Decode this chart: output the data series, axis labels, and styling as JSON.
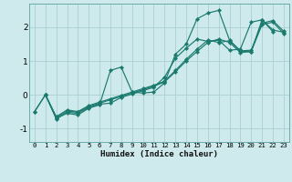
{
  "xlabel": "Humidex (Indice chaleur)",
  "bg_color": "#ceeaec",
  "grid_color": "#aacfd2",
  "line_color": "#1a7a6e",
  "xlim": [
    -0.5,
    23.5
  ],
  "ylim": [
    -1.4,
    2.7
  ],
  "yticks": [
    -1,
    0,
    1,
    2
  ],
  "xticks": [
    0,
    1,
    2,
    3,
    4,
    5,
    6,
    7,
    8,
    9,
    10,
    11,
    12,
    13,
    14,
    15,
    16,
    17,
    18,
    19,
    20,
    21,
    22,
    23
  ],
  "series": [
    {
      "x": [
        0,
        1,
        2,
        3,
        4,
        5,
        6,
        7,
        8,
        9,
        10,
        11,
        12,
        13,
        14,
        15,
        16,
        17,
        18,
        19,
        20,
        21,
        22
      ],
      "y": [
        -0.5,
        0.0,
        -0.7,
        -0.55,
        -0.6,
        -0.4,
        -0.3,
        0.72,
        0.82,
        0.08,
        0.05,
        0.08,
        0.35,
        1.2,
        1.5,
        2.25,
        2.42,
        2.5,
        1.62,
        1.3,
        1.27,
        2.22,
        1.87
      ]
    },
    {
      "x": [
        1,
        2,
        3,
        4,
        5,
        6,
        7,
        8,
        9,
        10,
        11,
        12,
        13,
        14,
        15,
        16,
        17,
        18,
        19,
        20,
        21,
        22,
        23
      ],
      "y": [
        0.0,
        -0.65,
        -0.45,
        -0.5,
        -0.32,
        -0.22,
        -0.12,
        -0.02,
        0.08,
        0.18,
        0.28,
        0.4,
        0.72,
        1.05,
        1.35,
        1.62,
        1.55,
        1.6,
        1.3,
        1.32,
        2.12,
        2.2,
        1.88
      ]
    },
    {
      "x": [
        1,
        2,
        3,
        4,
        5,
        6,
        7,
        8,
        9,
        10,
        11,
        12,
        13,
        14,
        15,
        16,
        17,
        18,
        19,
        20,
        21,
        22,
        23
      ],
      "y": [
        0.0,
        -0.68,
        -0.48,
        -0.52,
        -0.35,
        -0.25,
        -0.15,
        -0.05,
        0.05,
        0.15,
        0.25,
        0.38,
        0.68,
        1.0,
        1.28,
        1.55,
        1.65,
        1.55,
        1.25,
        1.28,
        2.08,
        2.15,
        1.82
      ]
    },
    {
      "x": [
        0,
        1,
        2,
        3,
        4,
        5,
        6,
        7,
        8,
        9,
        10,
        11,
        12,
        13,
        14,
        15,
        16,
        17,
        18,
        19,
        20,
        21,
        22,
        23
      ],
      "y": [
        -0.5,
        0.0,
        -0.72,
        -0.52,
        -0.55,
        -0.38,
        -0.28,
        -0.25,
        -0.08,
        0.02,
        0.12,
        0.22,
        0.52,
        1.08,
        1.38,
        1.65,
        1.58,
        1.62,
        1.32,
        1.35,
        2.15,
        2.22,
        1.92,
        1.85
      ]
    }
  ]
}
